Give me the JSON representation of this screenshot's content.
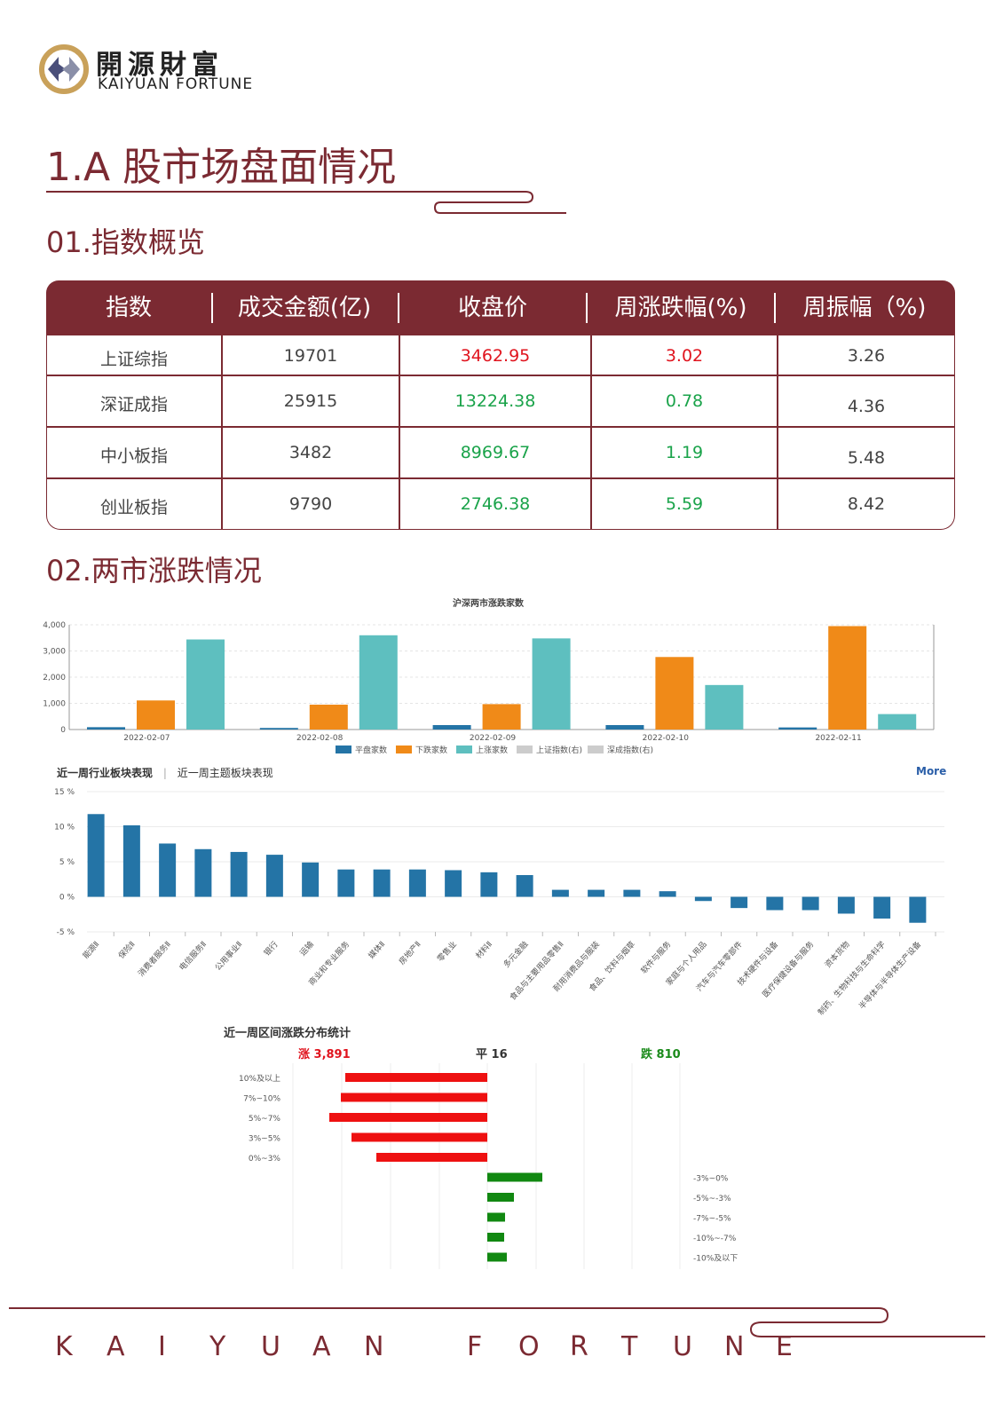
{
  "brand": {
    "name_cn": "開源財富",
    "name_en": "KAIYUAN FORTUNE"
  },
  "section_title": "1.A 股市场盘面情况",
  "sub1_title": "01.指数概览",
  "sub2_title": "02.两市涨跌情况",
  "index_table": {
    "headers": [
      "指数",
      "成交金额(亿)",
      "收盘价",
      "周涨跌幅(%)",
      "周振幅（%)"
    ],
    "rows": [
      {
        "name": "上证综指",
        "amount": "19701",
        "close": "3462.95",
        "change": "3.02",
        "amplitude": "3.26"
      },
      {
        "name": "深证成指",
        "amount": "25915",
        "close": "13224.38",
        "change": "0.78",
        "amplitude": "4.36"
      },
      {
        "name": "中小板指",
        "amount": "3482",
        "close": "8969.67",
        "change": "1.19",
        "amplitude": "5.48"
      },
      {
        "name": "创业板指",
        "amount": "9790",
        "close": "2746.38",
        "change": "5.59",
        "amplitude": "8.42"
      }
    ],
    "colors": {
      "up": "#e0141e",
      "down": "#1aa34a",
      "header": "#7b2a32"
    }
  },
  "industry_tabs": {
    "tab1": "近一周行业板块表现",
    "tab2": "近一周主题板块表现",
    "more": "More"
  },
  "dist_title": "近一周区间涨跌分布统计",
  "dist_summary": {
    "up": "涨 3,891",
    "flat": "平 16",
    "down": "跌 810"
  },
  "chart_data": [
    {
      "type": "bar",
      "title": "沪深两市涨跌家数",
      "categories": [
        "2022-02-07",
        "2022-02-08",
        "2022-02-09",
        "2022-02-10",
        "2022-02-11"
      ],
      "ylim": [
        0,
        4000
      ],
      "yticks": [
        "4,000",
        "3,000",
        "2,000",
        "1,000",
        "0"
      ],
      "series": [
        {
          "name": "平盘家数",
          "color": "#2474a6",
          "values": [
            90,
            60,
            170,
            170,
            80
          ]
        },
        {
          "name": "下跌家数",
          "color": "#f08a18",
          "values": [
            1110,
            950,
            970,
            2770,
            3950
          ]
        },
        {
          "name": "上涨家数",
          "color": "#5ebfbf",
          "values": [
            3440,
            3600,
            3480,
            1700,
            590
          ]
        }
      ],
      "legend_extra": [
        "上证指数(右)",
        "深成指数(右)"
      ],
      "legend": "bottom"
    },
    {
      "type": "bar",
      "title": "",
      "ylim": [
        -5,
        15
      ],
      "yticks": [
        "15 %",
        "10 %",
        "5 %",
        "0 %",
        "-5 %"
      ],
      "color": "#2474a6",
      "categories": [
        "能源Ⅱ",
        "保险Ⅱ",
        "消费者服务Ⅱ",
        "电信服务Ⅱ",
        "公用事业Ⅱ",
        "银行",
        "运输",
        "商业和专业服务",
        "媒体Ⅱ",
        "房地产Ⅱ",
        "零售业",
        "材料Ⅱ",
        "多元金融",
        "食品与主要用品零售Ⅱ",
        "耐用消费品与服装",
        "食品、饮料与烟草",
        "软件与服务",
        "家庭与个人用品",
        "汽车与汽车零部件",
        "技术硬件与设备",
        "医疗保健设备与服务",
        "资本货物",
        "制药、生物科技与生命科学",
        "半导体与半导体生产设备"
      ],
      "values": [
        11.8,
        10.2,
        7.6,
        6.8,
        6.4,
        6.0,
        4.9,
        3.9,
        3.9,
        3.9,
        3.8,
        3.5,
        3.1,
        1.0,
        1.0,
        1.0,
        0.8,
        -0.6,
        -1.6,
        -1.9,
        -1.9,
        -2.4,
        -3.1,
        -3.7
      ]
    },
    {
      "type": "bar",
      "title": "近一周区间涨跌分布统计",
      "orientation": "horizontal",
      "categories": [
        "10%及以上",
        "7%~10%",
        "5%~7%",
        "3%~5%",
        "0%~3%",
        "-3%~0%",
        "-5%~-3%",
        "-7%~-5%",
        "-10%~-7%",
        "-10%及以下"
      ],
      "values": [
        160,
        165,
        178,
        153,
        125,
        -62,
        -30,
        -20,
        -19,
        -22
      ],
      "colors": {
        "up": "#ee1111",
        "down": "#118811"
      }
    }
  ],
  "footer_letters": [
    "K",
    "A",
    "I",
    "Y",
    "U",
    "A",
    "N",
    "",
    "F",
    "O",
    "R",
    "T",
    "U",
    "N",
    "E"
  ]
}
